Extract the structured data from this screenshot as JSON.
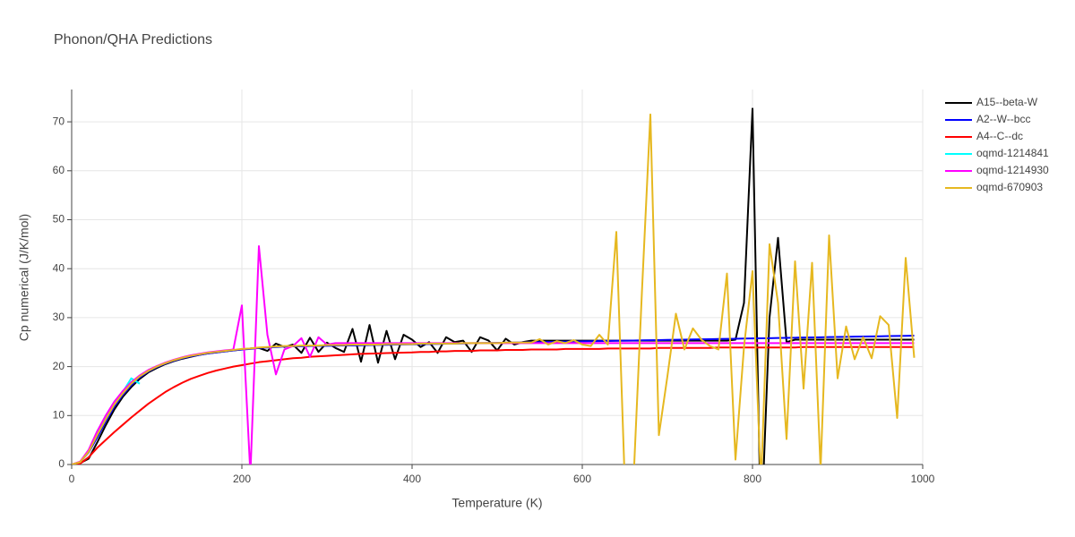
{
  "chart_data": {
    "type": "line",
    "title": "Phonon/QHA Predictions",
    "x_label": "Temperature (K)",
    "y_label": "Cp numerical (J/K/mol)",
    "xlim": [
      0,
      1000
    ],
    "ylim": [
      0,
      76.6
    ],
    "xticks": [
      0,
      200,
      400,
      600,
      800,
      1000
    ],
    "yticks": [
      0,
      10,
      20,
      30,
      40,
      50,
      60,
      70
    ],
    "grid": true,
    "legend": "right",
    "x": [
      0,
      10,
      20,
      30,
      40,
      50,
      60,
      70,
      80,
      90,
      100,
      110,
      120,
      130,
      140,
      150,
      160,
      170,
      180,
      190,
      200,
      210,
      220,
      230,
      240,
      250,
      260,
      270,
      280,
      290,
      300,
      310,
      320,
      330,
      340,
      350,
      360,
      370,
      380,
      390,
      400,
      410,
      420,
      430,
      440,
      450,
      460,
      470,
      480,
      490,
      500,
      510,
      520,
      530,
      540,
      550,
      560,
      570,
      580,
      590,
      600,
      610,
      620,
      630,
      640,
      650,
      660,
      670,
      680,
      690,
      700,
      710,
      720,
      730,
      740,
      750,
      760,
      770,
      780,
      790,
      800,
      810,
      820,
      830,
      840,
      850,
      860,
      870,
      880,
      890,
      900,
      910,
      920,
      930,
      940,
      950,
      960,
      970,
      980,
      990
    ],
    "series": [
      {
        "name": "A15--beta-W",
        "color": "#000000",
        "values": [
          0,
          0.3,
          1.2,
          4.5,
          8.0,
          11.2,
          13.8,
          15.8,
          17.5,
          18.8,
          19.7,
          20.5,
          21.1,
          21.6,
          22.0,
          22.4,
          22.7,
          22.9,
          23.1,
          23.3,
          23.5,
          23.7,
          23.8,
          23.2,
          24.7,
          24.0,
          24.5,
          22.8,
          25.9,
          23.0,
          24.9,
          23.8,
          23.0,
          27.7,
          21.0,
          28.5,
          20.8,
          27.3,
          21.5,
          26.5,
          25.5,
          24.0,
          25.0,
          22.8,
          26.0,
          25.0,
          25.3,
          23.0,
          26.0,
          25.3,
          23.3,
          25.7,
          24.5,
          25.0,
          25.3,
          25.3,
          25.3,
          25.3,
          25.3,
          25.3,
          25.3,
          25.3,
          25.3,
          25.3,
          25.3,
          25.3,
          25.3,
          25.3,
          25.3,
          25.3,
          25.3,
          25.3,
          25.3,
          25.3,
          25.3,
          25.3,
          25.3,
          25.3,
          25.5,
          33,
          72.7,
          -15,
          30,
          46.3,
          25,
          25.5,
          25.5,
          25.5,
          25.5,
          25.5,
          25.5,
          25.5,
          25.5,
          25.5,
          25.5,
          25.5,
          25.5,
          25.5,
          25.5,
          25.5
        ]
      },
      {
        "name": "A2--W--bcc",
        "color": "#0000ff",
        "values": [
          0,
          0.5,
          2.5,
          5.5,
          8.8,
          11.8,
          14.2,
          16.2,
          17.8,
          19.0,
          19.9,
          20.6,
          21.2,
          21.7,
          22.1,
          22.4,
          22.7,
          22.9,
          23.1,
          23.3,
          23.5,
          23.6,
          23.8,
          23.9,
          24.0,
          24.1,
          24.13,
          24.16,
          24.19,
          24.22,
          24.25,
          24.28,
          24.31,
          24.34,
          24.37,
          24.4,
          24.43,
          24.46,
          24.49,
          24.52,
          24.55,
          24.58,
          24.61,
          24.64,
          24.67,
          24.7,
          24.73,
          24.76,
          24.79,
          24.82,
          24.85,
          24.88,
          24.91,
          24.94,
          24.97,
          25.0,
          25.03,
          25.06,
          25.09,
          25.12,
          25.15,
          25.18,
          25.21,
          25.24,
          25.27,
          25.3,
          25.33,
          25.36,
          25.39,
          25.42,
          25.45,
          25.48,
          25.51,
          25.54,
          25.57,
          25.6,
          25.63,
          25.66,
          25.69,
          25.72,
          25.75,
          25.78,
          25.81,
          25.84,
          25.87,
          25.9,
          25.93,
          25.96,
          25.99,
          26.02,
          26.05,
          26.08,
          26.11,
          26.14,
          26.17,
          26.2,
          26.23,
          26.26,
          26.29,
          26.32
        ]
      },
      {
        "name": "A4--C--dc",
        "color": "#ff0000",
        "values": [
          0,
          0.2,
          1.5,
          3.4,
          5.0,
          6.6,
          8.1,
          9.6,
          11.0,
          12.4,
          13.6,
          14.8,
          15.8,
          16.7,
          17.5,
          18.1,
          18.7,
          19.2,
          19.6,
          20.0,
          20.3,
          20.6,
          20.9,
          21.1,
          21.3,
          21.5,
          21.7,
          21.8,
          22.0,
          22.1,
          22.2,
          22.3,
          22.4,
          22.5,
          22.6,
          22.65,
          22.7,
          22.75,
          22.8,
          22.85,
          22.9,
          23.0,
          23.0,
          23.1,
          23.1,
          23.2,
          23.2,
          23.2,
          23.3,
          23.3,
          23.3,
          23.4,
          23.4,
          23.4,
          23.5,
          23.5,
          23.5,
          23.5,
          23.6,
          23.6,
          23.6,
          23.6,
          23.6,
          23.7,
          23.7,
          23.7,
          23.7,
          23.7,
          23.7,
          23.8,
          23.8,
          23.8,
          23.8,
          23.8,
          23.8,
          23.8,
          23.9,
          23.9,
          23.9,
          23.9,
          23.9,
          23.9,
          23.9,
          23.9,
          23.9,
          23.9,
          24.0,
          24.0,
          24.0,
          24.0,
          24.0,
          24.0,
          24.0,
          24.0,
          24.0,
          24.0,
          24.0,
          24.0,
          24.0,
          24.0
        ]
      },
      {
        "name": "oqmd-1214841",
        "color": "#00ffff",
        "values": [
          0,
          0.5,
          2.8,
          6.5,
          9.8,
          12.8,
          14.8,
          17.6,
          16.5,
          null,
          null,
          null,
          null,
          null,
          null,
          null,
          null,
          null,
          null,
          null,
          null,
          null,
          null,
          null,
          null,
          null,
          null,
          null,
          null,
          null,
          null,
          null,
          null,
          null,
          null,
          null,
          null,
          null,
          null,
          null,
          null,
          null,
          null,
          null,
          null,
          null,
          null,
          null,
          null,
          null,
          null,
          null,
          null,
          null,
          null,
          null,
          null,
          null,
          null,
          null,
          null,
          null,
          null,
          null,
          null,
          null,
          null,
          null,
          null,
          null,
          null,
          null,
          null,
          null,
          null,
          null,
          null,
          null,
          null,
          null,
          null,
          null,
          null,
          null,
          null,
          null,
          null,
          null,
          null,
          null,
          null,
          null,
          null,
          null,
          null,
          null,
          null,
          null,
          null,
          null
        ]
      },
      {
        "name": "oqmd-1214930",
        "color": "#ff00ff",
        "values": [
          0,
          0.6,
          3.0,
          6.8,
          10.0,
          12.8,
          15.0,
          16.8,
          18.2,
          19.3,
          20.1,
          20.8,
          21.4,
          21.9,
          22.3,
          22.6,
          22.9,
          23.1,
          23.3,
          23.5,
          32.5,
          -2,
          44.6,
          26.5,
          18.4,
          23.5,
          24.2,
          25.8,
          22.0,
          26.0,
          24.5,
          24.8,
          24.8,
          24.8,
          24.8,
          24.8,
          24.8,
          24.8,
          24.8,
          24.8,
          24.8,
          24.8,
          24.8,
          24.8,
          24.8,
          24.8,
          24.8,
          24.8,
          24.8,
          24.8,
          24.8,
          24.8,
          24.8,
          24.8,
          24.8,
          24.8,
          24.8,
          24.8,
          24.8,
          24.8,
          24.8,
          24.8,
          24.8,
          24.8,
          24.8,
          24.8,
          24.8,
          24.8,
          24.8,
          24.8,
          24.8,
          24.8,
          24.8,
          24.8,
          24.8,
          24.8,
          24.8,
          24.8,
          24.8,
          24.8,
          24.8,
          24.8,
          24.8,
          24.8,
          24.8,
          24.8,
          24.8,
          24.8,
          24.8,
          24.8,
          24.8,
          24.8,
          24.8,
          24.8,
          24.8,
          24.8,
          24.8,
          24.8,
          24.8,
          24.8
        ]
      },
      {
        "name": "oqmd-670903",
        "color": "#e6b820",
        "values": [
          0,
          0.5,
          2.6,
          6.0,
          9.2,
          12.2,
          14.5,
          16.5,
          18.0,
          19.1,
          20.0,
          20.7,
          21.3,
          21.8,
          22.2,
          22.5,
          22.8,
          23.0,
          23.2,
          23.4,
          23.6,
          23.7,
          23.9,
          24.0,
          24.1,
          24.2,
          24.2,
          24.3,
          24.3,
          24.3,
          24.4,
          24.4,
          24.4,
          24.5,
          24.5,
          24.5,
          24.5,
          24.6,
          24.6,
          24.6,
          24.6,
          24.7,
          24.7,
          24.7,
          24.7,
          24.7,
          24.8,
          24.8,
          24.8,
          24.8,
          24.8,
          24.9,
          24.9,
          24.9,
          24.9,
          25.6,
          24.5,
          25.2,
          24.8,
          25.4,
          24.5,
          24.2,
          26.5,
          24.5,
          47.5,
          -4,
          -4,
          35,
          71.5,
          6,
          18,
          30.8,
          23.5,
          27.8,
          25.5,
          24.2,
          23.5,
          39,
          1,
          24,
          39.5,
          -4,
          45,
          33,
          5.2,
          41.5,
          15.5,
          41.2,
          -1,
          46.8,
          17.6,
          28.2,
          21.5,
          26,
          21.7,
          30.3,
          28.5,
          9.5,
          42.2,
          21.8
        ]
      }
    ]
  }
}
